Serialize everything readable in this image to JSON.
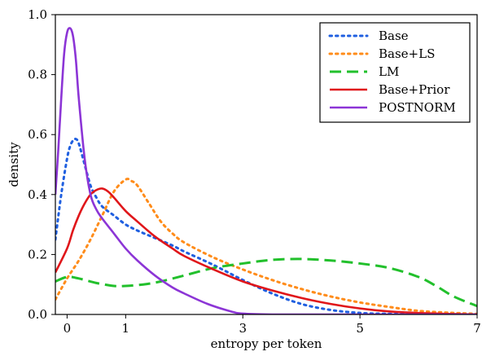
{
  "chart_data": {
    "type": "line",
    "title": "",
    "xlabel": "entropy per token",
    "ylabel": "density",
    "xlim": [
      -0.2,
      7
    ],
    "ylim": [
      0,
      1.0
    ],
    "xticks": [
      0,
      1,
      3,
      5,
      7
    ],
    "xtick_labels": [
      "0",
      "1",
      "3",
      "5",
      "7"
    ],
    "yticks": [
      0,
      0.2,
      0.4,
      0.6,
      0.8,
      1.0
    ],
    "ytick_labels": [
      "0.0",
      "0.2",
      "0.4",
      "0.6",
      "0.8",
      "1.0"
    ],
    "grid": false,
    "legend_position": "top-right",
    "series": [
      {
        "name": "Base",
        "color": "#1f5fe0",
        "dash": "dotted",
        "x": [
          -0.2,
          -0.1,
          0.0,
          0.05,
          0.1,
          0.15,
          0.2,
          0.3,
          0.4,
          0.5,
          0.6,
          0.8,
          1.0,
          1.2,
          1.5,
          1.8,
          2.0,
          2.5,
          3.0,
          3.5,
          4.0,
          4.5,
          5.0,
          5.5,
          6.0,
          6.5,
          7.0
        ],
        "y": [
          0.25,
          0.4,
          0.52,
          0.56,
          0.58,
          0.585,
          0.57,
          0.5,
          0.43,
          0.39,
          0.36,
          0.33,
          0.3,
          0.28,
          0.255,
          0.23,
          0.21,
          0.165,
          0.115,
          0.07,
          0.035,
          0.015,
          0.005,
          0.002,
          0.0,
          0.0,
          0.0
        ]
      },
      {
        "name": "Base+LS",
        "color": "#ff8c1a",
        "dash": "dotted",
        "x": [
          -0.2,
          0.0,
          0.2,
          0.4,
          0.6,
          0.8,
          1.0,
          1.1,
          1.2,
          1.4,
          1.6,
          1.8,
          2.0,
          2.5,
          3.0,
          3.5,
          4.0,
          4.5,
          5.0,
          5.5,
          6.0,
          6.5,
          7.0
        ],
        "y": [
          0.05,
          0.12,
          0.18,
          0.25,
          0.33,
          0.41,
          0.45,
          0.445,
          0.43,
          0.37,
          0.31,
          0.27,
          0.24,
          0.19,
          0.15,
          0.115,
          0.085,
          0.06,
          0.04,
          0.025,
          0.012,
          0.006,
          0.002
        ]
      },
      {
        "name": "LM",
        "color": "#22c02c",
        "dash": "dashed",
        "x": [
          -0.2,
          0.0,
          0.2,
          0.5,
          0.8,
          1.0,
          1.3,
          1.6,
          2.0,
          2.5,
          3.0,
          3.5,
          4.0,
          4.5,
          5.0,
          5.5,
          6.0,
          6.3,
          6.6,
          7.0
        ],
        "y": [
          0.11,
          0.125,
          0.12,
          0.105,
          0.095,
          0.095,
          0.1,
          0.11,
          0.13,
          0.155,
          0.17,
          0.182,
          0.185,
          0.18,
          0.17,
          0.155,
          0.125,
          0.095,
          0.06,
          0.028
        ]
      },
      {
        "name": "Base+Prior",
        "color": "#e0161a",
        "dash": "solid",
        "x": [
          -0.2,
          0.0,
          0.1,
          0.2,
          0.3,
          0.4,
          0.5,
          0.6,
          0.7,
          0.8,
          1.0,
          1.2,
          1.5,
          1.8,
          2.0,
          2.5,
          3.0,
          3.5,
          4.0,
          4.5,
          5.0,
          5.5,
          6.0,
          6.5,
          7.0
        ],
        "y": [
          0.14,
          0.22,
          0.28,
          0.33,
          0.37,
          0.4,
          0.415,
          0.42,
          0.41,
          0.39,
          0.345,
          0.31,
          0.26,
          0.22,
          0.195,
          0.15,
          0.11,
          0.08,
          0.055,
          0.035,
          0.02,
          0.01,
          0.005,
          0.002,
          0.0
        ]
      },
      {
        "name": "POSTNORM",
        "color": "#8c35d6",
        "dash": "solid",
        "x": [
          -0.2,
          -0.15,
          -0.1,
          -0.05,
          0.0,
          0.05,
          0.1,
          0.15,
          0.2,
          0.3,
          0.4,
          0.5,
          0.6,
          0.8,
          1.0,
          1.2,
          1.5,
          1.8,
          2.0,
          2.4,
          2.8,
          3.0,
          3.5,
          4.0,
          5.0,
          6.0,
          7.0
        ],
        "y": [
          0.4,
          0.55,
          0.72,
          0.87,
          0.94,
          0.955,
          0.93,
          0.85,
          0.72,
          0.52,
          0.4,
          0.35,
          0.32,
          0.27,
          0.22,
          0.18,
          0.13,
          0.09,
          0.07,
          0.035,
          0.01,
          0.003,
          0.0,
          0.0,
          0.0,
          0.0,
          0.0
        ]
      }
    ]
  }
}
